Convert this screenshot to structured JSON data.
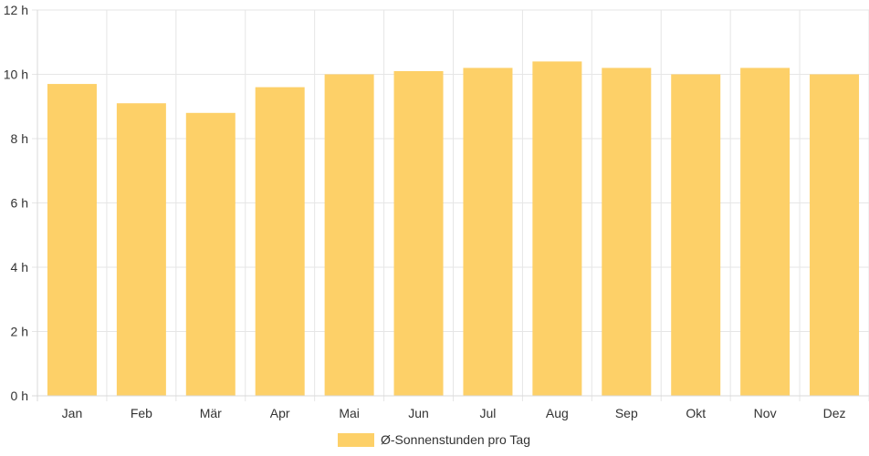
{
  "chart_data": {
    "type": "bar",
    "categories": [
      "Jan",
      "Feb",
      "Mär",
      "Apr",
      "Mai",
      "Jun",
      "Jul",
      "Aug",
      "Sep",
      "Okt",
      "Nov",
      "Dez"
    ],
    "series": [
      {
        "name": "Ø-Sonnenstunden pro Tag",
        "values": [
          9.7,
          9.1,
          8.8,
          9.6,
          10.0,
          10.1,
          10.2,
          10.4,
          10.2,
          10.0,
          10.2,
          10.0
        ],
        "color": "#fdd068"
      }
    ],
    "ylim": [
      0,
      12
    ],
    "yticks": [
      "0 h",
      "2 h",
      "4 h",
      "6 h",
      "8 h",
      "10 h",
      "12 h"
    ],
    "grid": true,
    "legend_position": "bottom"
  }
}
